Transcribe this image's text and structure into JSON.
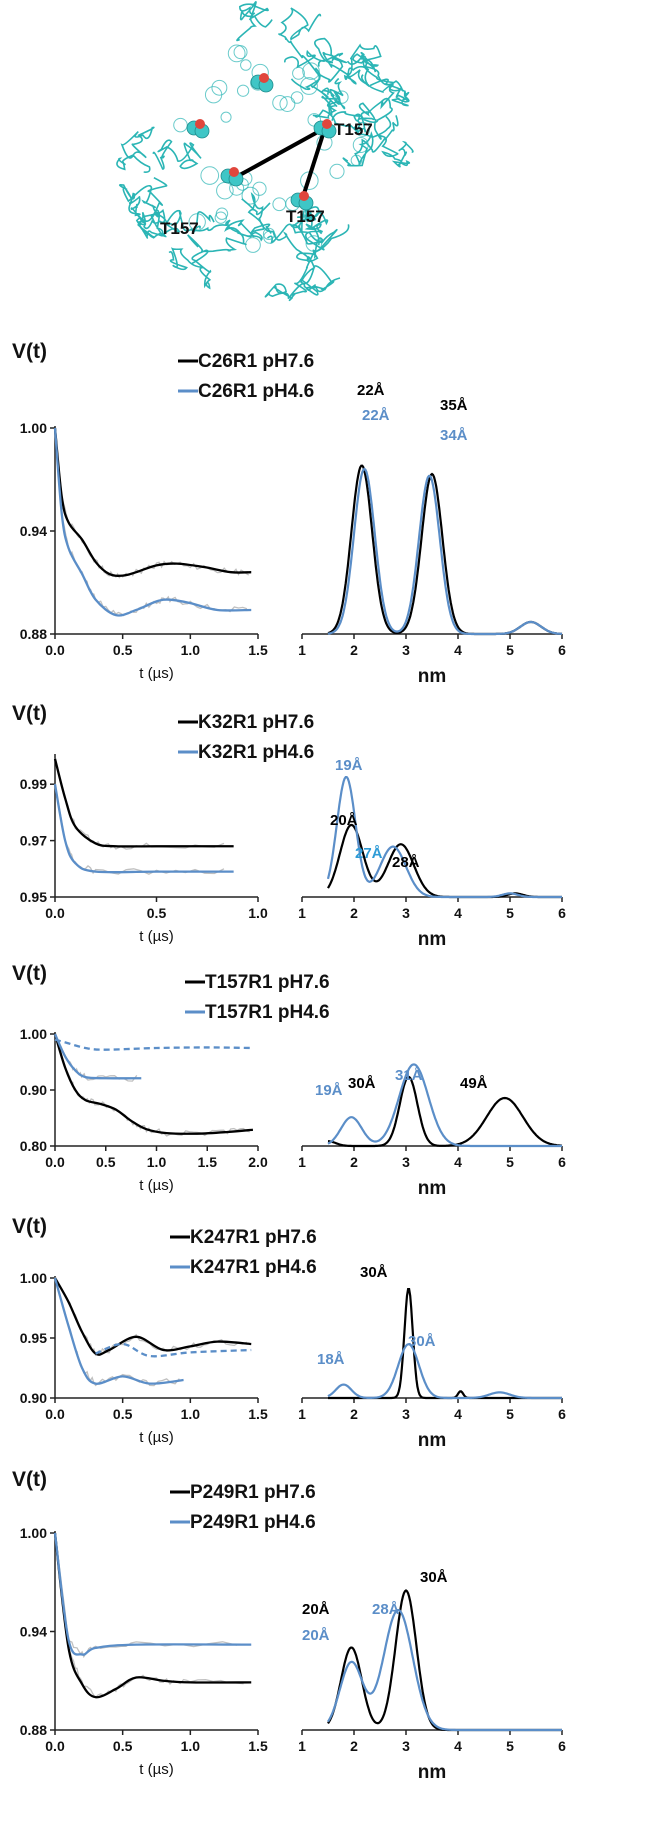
{
  "structure": {
    "residue_labels": [
      "T157",
      "T157",
      "T157"
    ],
    "ribbon_color": "#2bb5b5",
    "oxygen_color": "#e0463c"
  },
  "colors": {
    "ph76": "#000000",
    "ph46": "#5b8ec8",
    "raw": "#c0c0c0",
    "label_27": "#2e9bd6"
  },
  "chart_data": [
    {
      "type": "line",
      "ylabel": "V(t)",
      "xlabel": "t (µs)",
      "dist_xlabel": "nm",
      "xlim": [
        0,
        1.5
      ],
      "xticks": [
        "0.0",
        "0.5",
        "1.0",
        "1.5"
      ],
      "ylim": [
        0.88,
        1.0
      ],
      "yticks": [
        "1.00",
        "0.94",
        "0.88"
      ],
      "dist_xlim": [
        1,
        6
      ],
      "dist_xticks": [
        "1",
        "2",
        "3",
        "4",
        "5",
        "6"
      ],
      "series": [
        {
          "name": "C26R1 pH7.6",
          "color": "#000000",
          "x": [
            0,
            0.05,
            0.1,
            0.2,
            0.3,
            0.4,
            0.5,
            0.6,
            0.75,
            0.9,
            1.1,
            1.3,
            1.45
          ],
          "y": [
            1.0,
            0.96,
            0.945,
            0.935,
            0.922,
            0.915,
            0.914,
            0.916,
            0.92,
            0.921,
            0.919,
            0.916,
            0.916
          ],
          "distance_peaks": [
            {
              "nm": 2.15,
              "h": 0.98,
              "w": 0.2
            },
            {
              "nm": 3.5,
              "h": 0.93,
              "w": 0.2
            },
            {
              "nm": 5.4,
              "h": 0.07,
              "w": 0.2
            }
          ]
        },
        {
          "name": "C26R1 pH4.6",
          "color": "#5b8ec8",
          "x": [
            0,
            0.05,
            0.1,
            0.2,
            0.3,
            0.45,
            0.6,
            0.75,
            0.85,
            1.0,
            1.2,
            1.45
          ],
          "y": [
            1.0,
            0.95,
            0.93,
            0.915,
            0.9,
            0.891,
            0.894,
            0.899,
            0.9,
            0.898,
            0.894,
            0.894
          ],
          "distance_peaks": [
            {
              "nm": 2.2,
              "h": 0.96,
              "w": 0.2
            },
            {
              "nm": 3.45,
              "h": 0.92,
              "w": 0.2
            },
            {
              "nm": 5.4,
              "h": 0.07,
              "w": 0.2
            }
          ]
        }
      ],
      "annotations": [
        {
          "text": "22Å",
          "color": "#000000"
        },
        {
          "text": "22Å",
          "color": "#5b8ec8"
        },
        {
          "text": "35Å",
          "color": "#000000"
        },
        {
          "text": "34Å",
          "color": "#5b8ec8"
        }
      ]
    },
    {
      "type": "line",
      "ylabel": "V(t)",
      "xlabel": "t (µs)",
      "dist_xlabel": "nm",
      "xlim": [
        0,
        1.0
      ],
      "xticks": [
        "0.0",
        "0.5",
        "1.0"
      ],
      "ylim": [
        0.95,
        1.0
      ],
      "yticks": [
        "0.99",
        "0.97",
        "0.95"
      ],
      "dist_xlim": [
        1,
        6
      ],
      "dist_xticks": [
        "1",
        "2",
        "3",
        "4",
        "5",
        "6"
      ],
      "series": [
        {
          "name": "K32R1 pH7.6",
          "color": "#000000",
          "x": [
            0,
            0.05,
            0.1,
            0.2,
            0.3,
            0.5,
            0.88
          ],
          "y": [
            0.999,
            0.985,
            0.975,
            0.969,
            0.968,
            0.968,
            0.968
          ],
          "distance_peaks": [
            {
              "nm": 1.95,
              "h": 0.6,
              "w": 0.22
            },
            {
              "nm": 2.9,
              "h": 0.44,
              "w": 0.25
            },
            {
              "nm": 5.1,
              "h": 0.03,
              "w": 0.15
            }
          ]
        },
        {
          "name": "K32R1 pH4.6",
          "color": "#5b8ec8",
          "x": [
            0,
            0.05,
            0.1,
            0.2,
            0.5,
            0.88
          ],
          "y": [
            0.99,
            0.97,
            0.962,
            0.959,
            0.959,
            0.959
          ],
          "distance_peaks": [
            {
              "nm": 1.85,
              "h": 1.0,
              "w": 0.18
            },
            {
              "nm": 2.75,
              "h": 0.42,
              "w": 0.25
            },
            {
              "nm": 5.0,
              "h": 0.03,
              "w": 0.15
            }
          ]
        }
      ],
      "annotations": [
        {
          "text": "19Å",
          "color": "#5b8ec8"
        },
        {
          "text": "20Å",
          "color": "#000000"
        },
        {
          "text": "27Å",
          "color": "#2e9bd6"
        },
        {
          "text": "28Å",
          "color": "#000000"
        }
      ]
    },
    {
      "type": "line",
      "ylabel": "V(t)",
      "xlabel": "t (µs)",
      "dist_xlabel": "nm",
      "xlim": [
        0,
        2.0
      ],
      "xticks": [
        "0.0",
        "0.5",
        "1.0",
        "1.5",
        "2.0"
      ],
      "ylim": [
        0.8,
        1.0
      ],
      "yticks": [
        "1.00",
        "0.90",
        "0.80"
      ],
      "dist_xlim": [
        1,
        6
      ],
      "dist_xticks": [
        "1",
        "2",
        "3",
        "4",
        "5",
        "6"
      ],
      "series": [
        {
          "name": "T157R1 pH7.6",
          "color": "#000000",
          "x": [
            0,
            0.1,
            0.2,
            0.3,
            0.45,
            0.6,
            0.75,
            0.9,
            1.1,
            1.4,
            1.7,
            1.95
          ],
          "y": [
            1.0,
            0.94,
            0.9,
            0.882,
            0.875,
            0.865,
            0.845,
            0.83,
            0.823,
            0.822,
            0.825,
            0.829
          ],
          "distance_peaks": [
            {
              "nm": 1.5,
              "h": 0.05,
              "w": 0.15
            },
            {
              "nm": 3.05,
              "h": 0.72,
              "w": 0.17
            },
            {
              "nm": 4.9,
              "h": 0.5,
              "w": 0.35
            }
          ]
        },
        {
          "name": "T157R1 pH4.6",
          "color": "#5b8ec8",
          "x": [
            0,
            0.1,
            0.2,
            0.3,
            0.5,
            0.85
          ],
          "y": [
            1.0,
            0.96,
            0.935,
            0.923,
            0.921,
            0.921
          ],
          "distance_peaks": [
            {
              "nm": 1.95,
              "h": 0.3,
              "w": 0.2
            },
            {
              "nm": 3.15,
              "h": 0.85,
              "w": 0.28
            }
          ]
        },
        {
          "name": "",
          "color": "#5b8ec8",
          "dashed": true,
          "x": [
            0,
            0.1,
            0.3,
            0.5,
            1.0,
            1.5,
            1.95
          ],
          "y": [
            0.99,
            0.985,
            0.975,
            0.972,
            0.975,
            0.976,
            0.975
          ]
        }
      ],
      "annotations": [
        {
          "text": "30Å",
          "color": "#000000"
        },
        {
          "text": "31Å",
          "color": "#5b8ec8"
        },
        {
          "text": "19Å",
          "color": "#5b8ec8"
        },
        {
          "text": "49Å",
          "color": "#000000"
        }
      ]
    },
    {
      "type": "line",
      "ylabel": "V(t)",
      "xlabel": "t (µs)",
      "dist_xlabel": "nm",
      "xlim": [
        0,
        1.5
      ],
      "xticks": [
        "0.0",
        "0.5",
        "1.0",
        "1.5"
      ],
      "ylim": [
        0.9,
        1.0
      ],
      "yticks": [
        "1.00",
        "0.95",
        "0.90"
      ],
      "dist_xlim": [
        1,
        6
      ],
      "dist_xticks": [
        "1",
        "2",
        "3",
        "4",
        "5",
        "6"
      ],
      "series": [
        {
          "name": "K247R1 pH7.6",
          "color": "#000000",
          "x": [
            0,
            0.1,
            0.2,
            0.3,
            0.4,
            0.6,
            0.8,
            1.0,
            1.2,
            1.45
          ],
          "y": [
            1.0,
            0.98,
            0.955,
            0.937,
            0.94,
            0.951,
            0.94,
            0.943,
            0.947,
            0.945
          ],
          "distance_peaks": [
            {
              "nm": 3.05,
              "h": 0.98,
              "w": 0.08
            },
            {
              "nm": 4.05,
              "h": 0.06,
              "w": 0.05
            }
          ]
        },
        {
          "name": "K247R1 pH4.6",
          "color": "#5b8ec8",
          "x": [
            0,
            0.1,
            0.2,
            0.3,
            0.5,
            0.7,
            0.95
          ],
          "y": [
            1.0,
            0.96,
            0.925,
            0.912,
            0.918,
            0.912,
            0.915
          ],
          "distance_peaks": [
            {
              "nm": 1.8,
              "h": 0.12,
              "w": 0.15
            },
            {
              "nm": 3.05,
              "h": 0.48,
              "w": 0.2
            },
            {
              "nm": 4.8,
              "h": 0.05,
              "w": 0.2
            }
          ]
        },
        {
          "name": "",
          "color": "#5b8ec8",
          "dashed": true,
          "x": [
            0.3,
            0.5,
            0.7,
            1.0,
            1.45
          ],
          "y": [
            0.937,
            0.945,
            0.935,
            0.938,
            0.94
          ]
        }
      ],
      "annotations": [
        {
          "text": "30Å",
          "color": "#000000"
        },
        {
          "text": "30Å",
          "color": "#5b8ec8"
        },
        {
          "text": "18Å",
          "color": "#5b8ec8"
        }
      ]
    },
    {
      "type": "line",
      "ylabel": "V(t)",
      "xlabel": "t (µs)",
      "dist_xlabel": "nm",
      "xlim": [
        0,
        1.5
      ],
      "xticks": [
        "0.0",
        "0.5",
        "1.0",
        "1.5"
      ],
      "ylim": [
        0.88,
        1.0
      ],
      "yticks": [
        "1.00",
        "0.94",
        "0.88"
      ],
      "dist_xlim": [
        1,
        6
      ],
      "dist_xticks": [
        "1",
        "2",
        "3",
        "4",
        "5",
        "6"
      ],
      "series": [
        {
          "name": "P249R1 pH7.6",
          "color": "#000000",
          "x": [
            0,
            0.1,
            0.2,
            0.3,
            0.45,
            0.6,
            0.8,
            1.0,
            1.45
          ],
          "y": [
            1.0,
            0.93,
            0.908,
            0.9,
            0.905,
            0.912,
            0.91,
            0.909,
            0.909
          ],
          "distance_peaks": [
            {
              "nm": 1.95,
              "h": 0.55,
              "w": 0.2
            },
            {
              "nm": 3.0,
              "h": 0.93,
              "w": 0.2
            }
          ]
        },
        {
          "name": "P249R1 pH4.6",
          "color": "#5b8ec8",
          "x": [
            0,
            0.1,
            0.2,
            0.3,
            0.6,
            1.45
          ],
          "y": [
            1.0,
            0.935,
            0.926,
            0.93,
            0.932,
            0.932
          ],
          "distance_peaks": [
            {
              "nm": 1.95,
              "h": 0.45,
              "w": 0.22
            },
            {
              "nm": 2.85,
              "h": 0.8,
              "w": 0.28
            }
          ]
        }
      ],
      "annotations": [
        {
          "text": "20Å",
          "color": "#000000"
        },
        {
          "text": "28Å",
          "color": "#5b8ec8"
        },
        {
          "text": "30Å",
          "color": "#000000"
        },
        {
          "text": "20Å",
          "color": "#5b8ec8"
        }
      ]
    }
  ]
}
